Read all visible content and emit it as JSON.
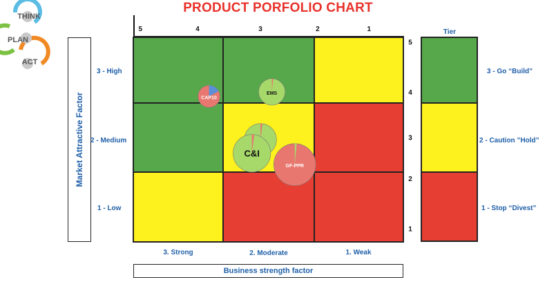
{
  "title": "PRODUCT PORFOLIO CHART",
  "logo": {
    "steps": [
      "THINK",
      "PLAN",
      "ACT"
    ]
  },
  "colors": {
    "green": "#56a84b",
    "yellow": "#fdf21d",
    "red": "#e63e32",
    "label_blue": "#1f5fa8",
    "title_red": "#e8312a"
  },
  "chart_data": {
    "type": "scatter",
    "title": "PRODUCT PORFOLIO CHART",
    "xlabel": "Business strength factor",
    "ylabel": "Market Attractive Factor",
    "xlim": [
      5.5,
      0.8
    ],
    "ylim": [
      0.6,
      5.1
    ],
    "top_ticks": [
      "5",
      "4",
      "3",
      "2",
      "1"
    ],
    "top_tick_values": [
      5.4,
      4.4,
      3.3,
      2.3,
      1.4
    ],
    "right_ticks": [
      "5",
      "4",
      "3",
      "2",
      "1"
    ],
    "right_tick_values": [
      5,
      3.9,
      2.9,
      2.0,
      0.9
    ],
    "x_categories": [
      "3. Strong",
      "2. Moderate",
      "1. Weak"
    ],
    "y_categories": [
      "3 - High",
      "2 - Medium",
      "1 - Low"
    ],
    "grid_colors": [
      [
        "green",
        "green",
        "yellow"
      ],
      [
        "green",
        "yellow",
        "red"
      ],
      [
        "yellow",
        "red",
        "red"
      ]
    ],
    "points": [
      {
        "label": "CAP10",
        "x": 4.2,
        "y": 3.8,
        "size": 1.0,
        "color": "#e8776f",
        "slice_color": "#5b8fd6",
        "slice_fraction": 0.17
      },
      {
        "label": "EMS",
        "x": 3.1,
        "y": 3.9,
        "size": 1.2,
        "color": "#a6d96a",
        "slice_color": "#e8776f",
        "slice_fraction": 0.015
      },
      {
        "label": "",
        "x": 3.3,
        "y": 2.85,
        "size": 1.45,
        "color": "#a6d96a",
        "slice_color": "#e8776f",
        "slice_fraction": 0.02
      },
      {
        "label": "C&I",
        "x": 3.45,
        "y": 2.55,
        "size": 1.7,
        "color": "#a6d96a",
        "slice_color": "#e8776f",
        "slice_fraction": 0.02
      },
      {
        "label": "GF-PPR",
        "x": 2.7,
        "y": 2.3,
        "size": 1.9,
        "color": "#e8776f",
        "slice_color": "#a6d96a",
        "slice_fraction": 0.015
      }
    ]
  },
  "tier": {
    "header": "Tier",
    "items": [
      {
        "label": "3 - Go “Build”",
        "color": "green"
      },
      {
        "label": "2 - Caution ”Hold”",
        "color": "yellow"
      },
      {
        "label": "1 - Stop “Divest”",
        "color": "red"
      }
    ]
  }
}
